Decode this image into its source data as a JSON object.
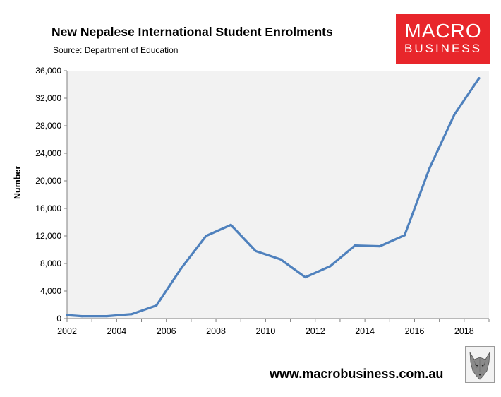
{
  "header": {
    "title": "New Nepalese International Student Enrolments",
    "subtitle": "Source: Department of Education"
  },
  "logo": {
    "line1": "MACRO",
    "line2": "BUSINESS",
    "color": "#e8262b"
  },
  "footer": {
    "url": "www.macrobusiness.com.au",
    "mascot_icon": "wolf-icon"
  },
  "chart_data": {
    "type": "line",
    "title": "New Nepalese International Student Enrolments",
    "xlabel": "",
    "ylabel": "Number",
    "xlim": [
      2002,
      2019
    ],
    "ylim": [
      0,
      36000
    ],
    "x_ticks": [
      "2002",
      "2004",
      "2006",
      "2008",
      "2010",
      "2012",
      "2014",
      "2016",
      "2018"
    ],
    "y_ticks": [
      "0",
      "4,000",
      "8,000",
      "12,000",
      "16,000",
      "20,000",
      "24,000",
      "28,000",
      "32,000",
      "36,000"
    ],
    "grid": false,
    "plot_background": "#f2f2f2",
    "series": [
      {
        "color": "#4f81bd",
        "x": [
          2002.0,
          2002.6,
          2003.6,
          2004.6,
          2005.6,
          2006.6,
          2007.6,
          2008.6,
          2009.6,
          2010.6,
          2011.6,
          2012.6,
          2013.6,
          2014.6,
          2015.6,
          2016.6,
          2017.6,
          2018.6
        ],
        "y": [
          500,
          350,
          350,
          650,
          1900,
          7300,
          12000,
          13600,
          9800,
          8600,
          6000,
          7600,
          10600,
          10500,
          12100,
          21800,
          29600,
          34900
        ]
      }
    ]
  }
}
